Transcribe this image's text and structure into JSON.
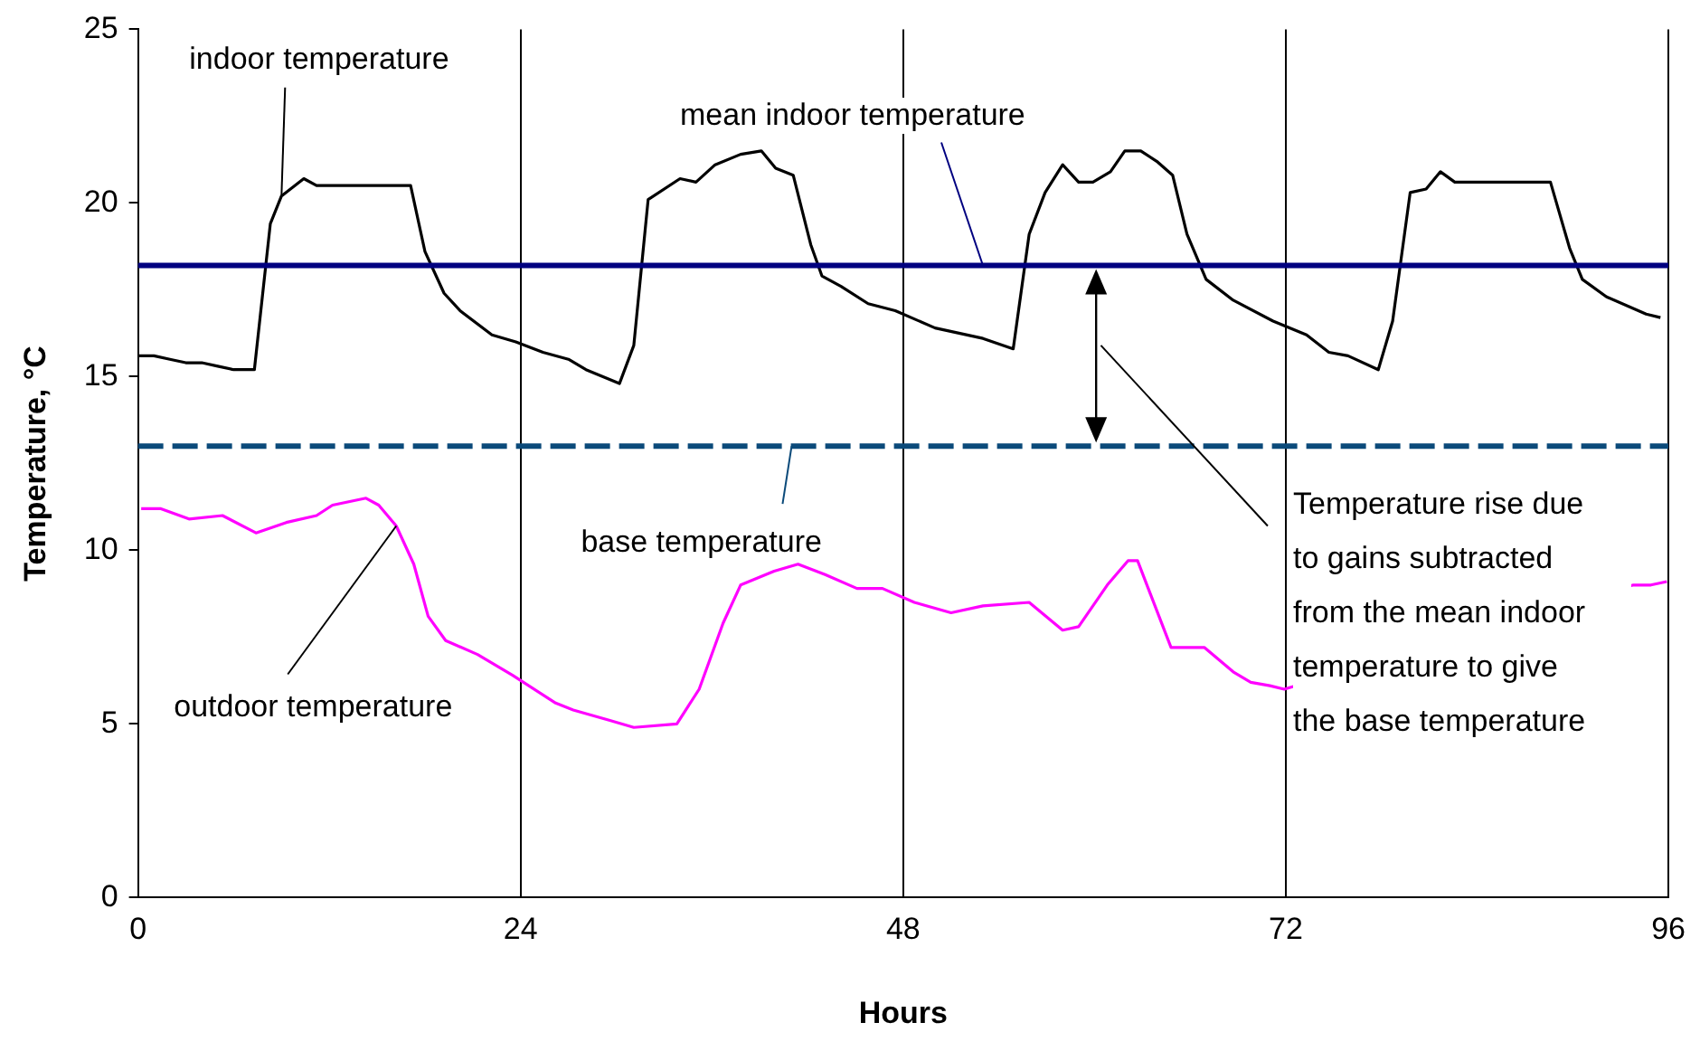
{
  "chart_data": {
    "type": "line",
    "xlabel": "Hours",
    "ylabel": "Temperature, °C",
    "xlim": [
      0,
      96
    ],
    "xticks": [
      0,
      24,
      48,
      72,
      96
    ],
    "ylim": [
      0,
      25
    ],
    "yticks": [
      0,
      5,
      10,
      15,
      20,
      25
    ],
    "grid": "x",
    "series": [
      {
        "name": "indoor temperature",
        "color": "#000000",
        "x": [
          0,
          1,
          2,
          3,
          4,
          5,
          6,
          7.3,
          8.3,
          9,
          10.4,
          11.2,
          17.1,
          18,
          19.2,
          20.2,
          22.2,
          23.7,
          25.4,
          27,
          28.1,
          30.2,
          31.1,
          32,
          34,
          35,
          36.2,
          37.8,
          39.1,
          40,
          41.1,
          42.2,
          42.9,
          44.1,
          45.8,
          47.5,
          50,
          53,
          54.9,
          55.9,
          56.9,
          58,
          59,
          59.9,
          61,
          61.9,
          62.9,
          63.9,
          64.9,
          65.8,
          67,
          68.7,
          71.2,
          73.3,
          74.7,
          75.9,
          77.8,
          78.7,
          79.8,
          80.8,
          81.7,
          82.6,
          88.6,
          89.8,
          90.6,
          92.1,
          94.6,
          95.5
        ],
        "values": [
          15.6,
          15.6,
          15.5,
          15.4,
          15.4,
          15.3,
          15.2,
          15.2,
          19.4,
          20.2,
          20.7,
          20.5,
          20.5,
          18.6,
          17.4,
          16.9,
          16.2,
          16.0,
          15.7,
          15.5,
          15.2,
          14.8,
          15.9,
          20.1,
          20.7,
          20.6,
          21.1,
          21.4,
          21.5,
          21.0,
          20.8,
          18.8,
          17.9,
          17.6,
          17.1,
          16.9,
          16.4,
          16.1,
          15.8,
          19.1,
          20.3,
          21.1,
          20.6,
          20.6,
          20.9,
          21.5,
          21.5,
          21.2,
          20.8,
          19.1,
          17.8,
          17.2,
          16.6,
          16.2,
          15.7,
          15.6,
          15.2,
          16.6,
          20.3,
          20.4,
          20.9,
          20.6,
          20.6,
          18.7,
          17.8,
          17.3,
          16.8,
          16.7
        ]
      },
      {
        "name": "outdoor temperature",
        "color": "#ff00ff",
        "x": [
          0.2,
          1.4,
          3.2,
          5.3,
          7.4,
          9.3,
          11.2,
          12.2,
          14.3,
          15.1,
          16.2,
          17.3,
          18.2,
          19.3,
          21.3,
          23.5,
          26.2,
          27.3,
          29.6,
          31.1,
          33.8,
          35.2,
          36.7,
          37.8,
          39.9,
          41.4,
          43.1,
          45.1,
          46.7,
          48.7,
          51,
          53,
          55.9,
          58,
          59,
          60.8,
          62.1,
          62.7,
          64.8,
          66.9,
          68.7,
          69.8,
          71,
          71.9,
          93.8,
          94.9,
          95.9
        ],
        "values": [
          11.2,
          11.2,
          10.9,
          11.0,
          10.5,
          10.8,
          11.0,
          11.3,
          11.5,
          11.3,
          10.7,
          9.6,
          8.1,
          7.4,
          7.0,
          6.4,
          5.6,
          5.4,
          5.1,
          4.9,
          5.0,
          6.0,
          7.9,
          9.0,
          9.4,
          9.6,
          9.3,
          8.9,
          8.9,
          8.5,
          8.2,
          8.4,
          8.5,
          7.7,
          7.8,
          9.0,
          9.7,
          9.7,
          7.2,
          7.2,
          6.5,
          6.2,
          6.1,
          6.0,
          9.0,
          9.0,
          9.1
        ]
      }
    ],
    "ref_lines": [
      {
        "axis": "y",
        "value": 18.2,
        "label": "mean indoor temperature",
        "color": "#000080",
        "line_style": "solid"
      },
      {
        "axis": "y",
        "value": 13,
        "label": "base temperature",
        "color": "#0b4a7a",
        "line_style": "dashed"
      }
    ],
    "annotations": [
      "Temperature rise due to gains subtracted from the mean indoor temperature to give the base temperature"
    ]
  }
}
